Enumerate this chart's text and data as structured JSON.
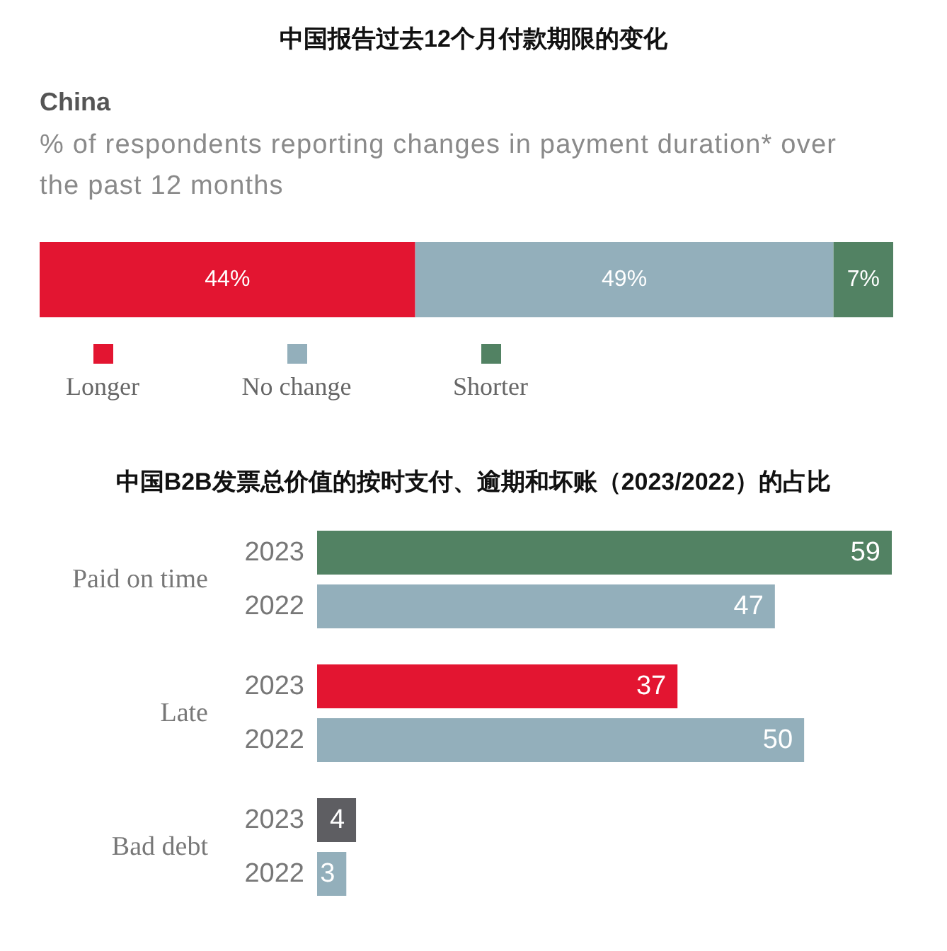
{
  "chart_data": [
    {
      "type": "bar",
      "title": "中国报告过去12个月付款期限的变化",
      "subtitle": "China",
      "annotations": [
        "% of respondents reporting changes in payment duration* over the past 12 months"
      ],
      "orientation": "horizontal",
      "stacked": true,
      "categories": [
        null
      ],
      "series": [
        {
          "name": "Longer",
          "color": "#e31531",
          "values": [
            44
          ],
          "value_labels": [
            "44%"
          ]
        },
        {
          "name": "No change",
          "color": "#93afbb",
          "values": [
            49
          ],
          "value_labels": [
            "49%"
          ]
        },
        {
          "name": "Shorter",
          "color": "#528263",
          "values": [
            7
          ],
          "value_labels": [
            "7%"
          ]
        }
      ],
      "legend": "bottom left",
      "tick_labels": false
    },
    {
      "type": "bar",
      "title": "中国B2B发票总价值的按时支付、逾期和坏账（2023/2022）的占比",
      "orientation": "horizontal",
      "categories": [
        "Paid on time",
        "Late",
        "Bad debt"
      ],
      "series": [
        {
          "name": "2023",
          "colors": [
            "#528263",
            "#e31531",
            "#5e5e62"
          ],
          "values": [
            59,
            37,
            4
          ]
        },
        {
          "name": "2022",
          "color": "#93afbb",
          "values": [
            47,
            50,
            3
          ]
        }
      ],
      "data_labels": true,
      "tick_labels": "y"
    }
  ]
}
